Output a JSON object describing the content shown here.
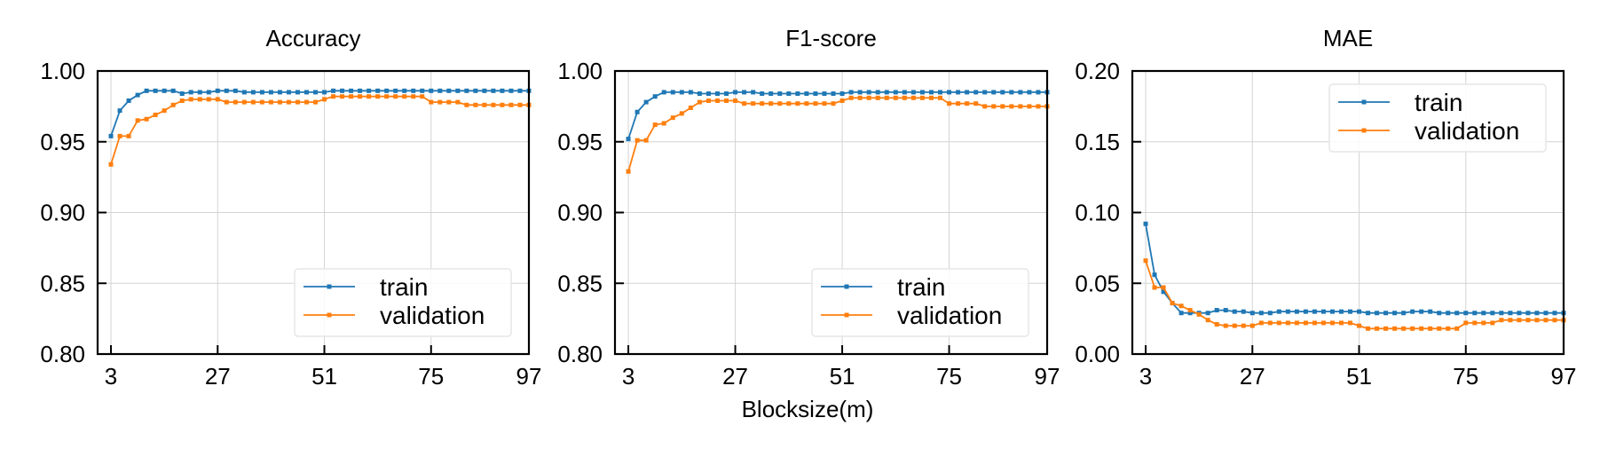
{
  "xlabel": "Blocksize(m)",
  "colors": {
    "train": "#1f77b4",
    "validation": "#ff7f0e"
  },
  "chart_data": [
    {
      "type": "line",
      "title": "Accuracy",
      "xlim": [
        0,
        97
      ],
      "ylim": [
        0.8,
        1.0
      ],
      "xticks": [
        3,
        27,
        51,
        75,
        97
      ],
      "yticks": [
        "0.80",
        "0.85",
        "0.90",
        "0.95",
        "1.00"
      ],
      "grid": true,
      "legend": "lower right",
      "series": [
        {
          "name": "train",
          "x": [
            3,
            5,
            7,
            9,
            11,
            13,
            15,
            17,
            19,
            21,
            23,
            25,
            27,
            29,
            31,
            33,
            35,
            37,
            39,
            41,
            43,
            45,
            47,
            49,
            51,
            53,
            55,
            57,
            59,
            61,
            63,
            65,
            67,
            69,
            71,
            73,
            75,
            77,
            79,
            81,
            83,
            85,
            87,
            89,
            91,
            93,
            95,
            97
          ],
          "y": [
            0.954,
            0.972,
            0.979,
            0.983,
            0.986,
            0.986,
            0.986,
            0.986,
            0.984,
            0.985,
            0.985,
            0.985,
            0.986,
            0.986,
            0.986,
            0.985,
            0.985,
            0.985,
            0.985,
            0.985,
            0.985,
            0.985,
            0.985,
            0.985,
            0.985,
            0.986,
            0.986,
            0.986,
            0.986,
            0.986,
            0.986,
            0.986,
            0.986,
            0.986,
            0.986,
            0.986,
            0.986,
            0.986,
            0.986,
            0.986,
            0.986,
            0.986,
            0.986,
            0.986,
            0.986,
            0.986,
            0.986,
            0.986
          ]
        },
        {
          "name": "validation",
          "x": [
            3,
            5,
            7,
            9,
            11,
            13,
            15,
            17,
            19,
            21,
            23,
            25,
            27,
            29,
            31,
            33,
            35,
            37,
            39,
            41,
            43,
            45,
            47,
            49,
            51,
            53,
            55,
            57,
            59,
            61,
            63,
            65,
            67,
            69,
            71,
            73,
            75,
            77,
            79,
            81,
            83,
            85,
            87,
            89,
            91,
            93,
            95,
            97
          ],
          "y": [
            0.934,
            0.954,
            0.954,
            0.965,
            0.966,
            0.969,
            0.972,
            0.976,
            0.979,
            0.98,
            0.98,
            0.98,
            0.98,
            0.978,
            0.978,
            0.978,
            0.978,
            0.978,
            0.978,
            0.978,
            0.978,
            0.978,
            0.978,
            0.978,
            0.98,
            0.982,
            0.982,
            0.982,
            0.982,
            0.982,
            0.982,
            0.982,
            0.982,
            0.982,
            0.982,
            0.982,
            0.978,
            0.978,
            0.978,
            0.978,
            0.976,
            0.976,
            0.976,
            0.976,
            0.976,
            0.976,
            0.976,
            0.976
          ]
        }
      ]
    },
    {
      "type": "line",
      "title": "F1-score",
      "xlim": [
        0,
        97
      ],
      "ylim": [
        0.8,
        1.0
      ],
      "xticks": [
        3,
        27,
        51,
        75,
        97
      ],
      "yticks": [
        "0.80",
        "0.85",
        "0.90",
        "0.95",
        "1.00"
      ],
      "grid": true,
      "legend": "lower right",
      "series": [
        {
          "name": "train",
          "x": [
            3,
            5,
            7,
            9,
            11,
            13,
            15,
            17,
            19,
            21,
            23,
            25,
            27,
            29,
            31,
            33,
            35,
            37,
            39,
            41,
            43,
            45,
            47,
            49,
            51,
            53,
            55,
            57,
            59,
            61,
            63,
            65,
            67,
            69,
            71,
            73,
            75,
            77,
            79,
            81,
            83,
            85,
            87,
            89,
            91,
            93,
            95,
            97
          ],
          "y": [
            0.952,
            0.971,
            0.978,
            0.982,
            0.985,
            0.985,
            0.985,
            0.985,
            0.984,
            0.984,
            0.984,
            0.984,
            0.985,
            0.985,
            0.985,
            0.984,
            0.984,
            0.984,
            0.984,
            0.984,
            0.984,
            0.984,
            0.984,
            0.984,
            0.984,
            0.985,
            0.985,
            0.985,
            0.985,
            0.985,
            0.985,
            0.985,
            0.985,
            0.985,
            0.985,
            0.985,
            0.985,
            0.985,
            0.985,
            0.985,
            0.985,
            0.985,
            0.985,
            0.985,
            0.985,
            0.985,
            0.985,
            0.985
          ]
        },
        {
          "name": "validation",
          "x": [
            3,
            5,
            7,
            9,
            11,
            13,
            15,
            17,
            19,
            21,
            23,
            25,
            27,
            29,
            31,
            33,
            35,
            37,
            39,
            41,
            43,
            45,
            47,
            49,
            51,
            53,
            55,
            57,
            59,
            61,
            63,
            65,
            67,
            69,
            71,
            73,
            75,
            77,
            79,
            81,
            83,
            85,
            87,
            89,
            91,
            93,
            95,
            97
          ],
          "y": [
            0.929,
            0.951,
            0.951,
            0.962,
            0.963,
            0.967,
            0.97,
            0.974,
            0.978,
            0.979,
            0.979,
            0.979,
            0.979,
            0.977,
            0.977,
            0.977,
            0.977,
            0.977,
            0.977,
            0.977,
            0.977,
            0.977,
            0.977,
            0.977,
            0.979,
            0.981,
            0.981,
            0.981,
            0.981,
            0.981,
            0.981,
            0.981,
            0.981,
            0.981,
            0.981,
            0.981,
            0.977,
            0.977,
            0.977,
            0.977,
            0.975,
            0.975,
            0.975,
            0.975,
            0.975,
            0.975,
            0.975,
            0.975
          ]
        }
      ]
    },
    {
      "type": "line",
      "title": "MAE",
      "xlim": [
        0,
        97
      ],
      "ylim": [
        0.0,
        0.2
      ],
      "xticks": [
        3,
        27,
        51,
        75,
        97
      ],
      "yticks": [
        "0.00",
        "0.05",
        "0.10",
        "0.15",
        "0.20"
      ],
      "grid": true,
      "legend": "upper right",
      "series": [
        {
          "name": "train",
          "x": [
            3,
            5,
            7,
            9,
            11,
            13,
            15,
            17,
            19,
            21,
            23,
            25,
            27,
            29,
            31,
            33,
            35,
            37,
            39,
            41,
            43,
            45,
            47,
            49,
            51,
            53,
            55,
            57,
            59,
            61,
            63,
            65,
            67,
            69,
            71,
            73,
            75,
            77,
            79,
            81,
            83,
            85,
            87,
            89,
            91,
            93,
            95,
            97
          ],
          "y": [
            0.092,
            0.056,
            0.044,
            0.036,
            0.029,
            0.029,
            0.029,
            0.029,
            0.031,
            0.031,
            0.03,
            0.03,
            0.029,
            0.029,
            0.029,
            0.03,
            0.03,
            0.03,
            0.03,
            0.03,
            0.03,
            0.03,
            0.03,
            0.03,
            0.03,
            0.029,
            0.029,
            0.029,
            0.029,
            0.029,
            0.03,
            0.03,
            0.03,
            0.029,
            0.029,
            0.029,
            0.029,
            0.029,
            0.029,
            0.029,
            0.029,
            0.029,
            0.029,
            0.029,
            0.029,
            0.029,
            0.029,
            0.029
          ]
        },
        {
          "name": "validation",
          "x": [
            3,
            5,
            7,
            9,
            11,
            13,
            15,
            17,
            19,
            21,
            23,
            25,
            27,
            29,
            31,
            33,
            35,
            37,
            39,
            41,
            43,
            45,
            47,
            49,
            51,
            53,
            55,
            57,
            59,
            61,
            63,
            65,
            67,
            69,
            71,
            73,
            75,
            77,
            79,
            81,
            83,
            85,
            87,
            89,
            91,
            93,
            95,
            97
          ],
          "y": [
            0.066,
            0.047,
            0.047,
            0.036,
            0.034,
            0.031,
            0.028,
            0.024,
            0.021,
            0.02,
            0.02,
            0.02,
            0.02,
            0.022,
            0.022,
            0.022,
            0.022,
            0.022,
            0.022,
            0.022,
            0.022,
            0.022,
            0.022,
            0.022,
            0.02,
            0.018,
            0.018,
            0.018,
            0.018,
            0.018,
            0.018,
            0.018,
            0.018,
            0.018,
            0.018,
            0.018,
            0.022,
            0.022,
            0.022,
            0.022,
            0.024,
            0.024,
            0.024,
            0.024,
            0.024,
            0.024,
            0.024,
            0.024
          ]
        }
      ]
    }
  ]
}
